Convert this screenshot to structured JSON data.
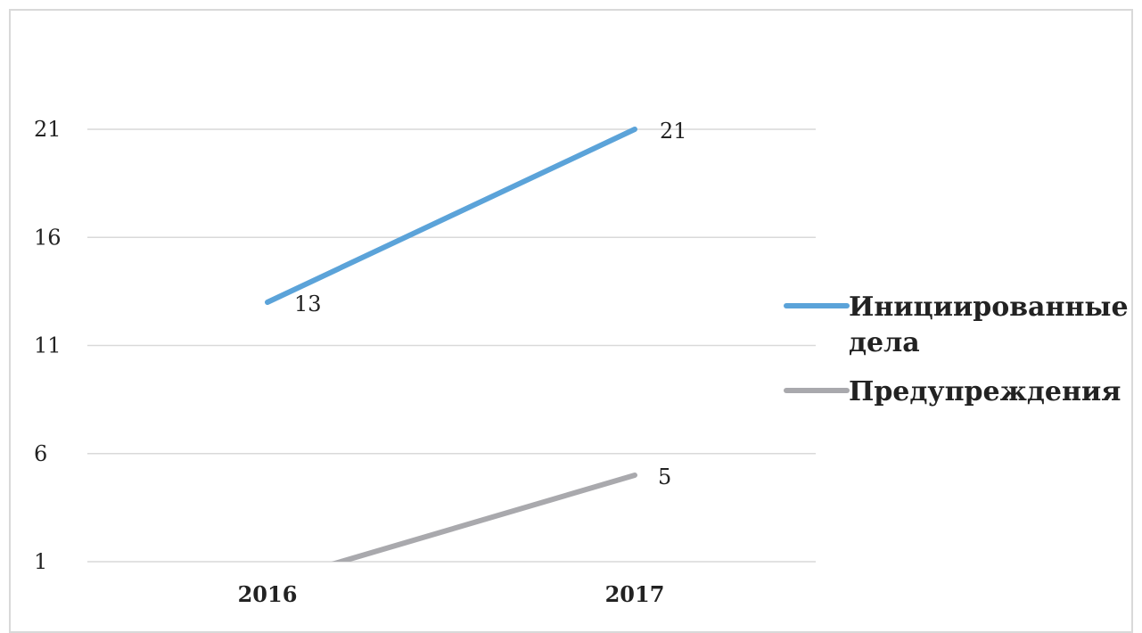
{
  "chart_data": {
    "type": "line",
    "categories": [
      "2016",
      "2017"
    ],
    "y_ticks": [
      "1",
      "6",
      "11",
      "16",
      "21"
    ],
    "ylim": [
      1,
      21
    ],
    "grid": true,
    "legend_position": "right",
    "series": [
      {
        "name_lines": [
          "Инициированные",
          "дела"
        ],
        "values": [
          13,
          21
        ],
        "labels": [
          "13",
          "21"
        ],
        "color": "#5ba3d9"
      },
      {
        "name_lines": [
          "Предупреждения"
        ],
        "values": [
          0,
          5
        ],
        "labels": [
          "",
          "5"
        ],
        "color": "#a9a9ad"
      }
    ]
  }
}
